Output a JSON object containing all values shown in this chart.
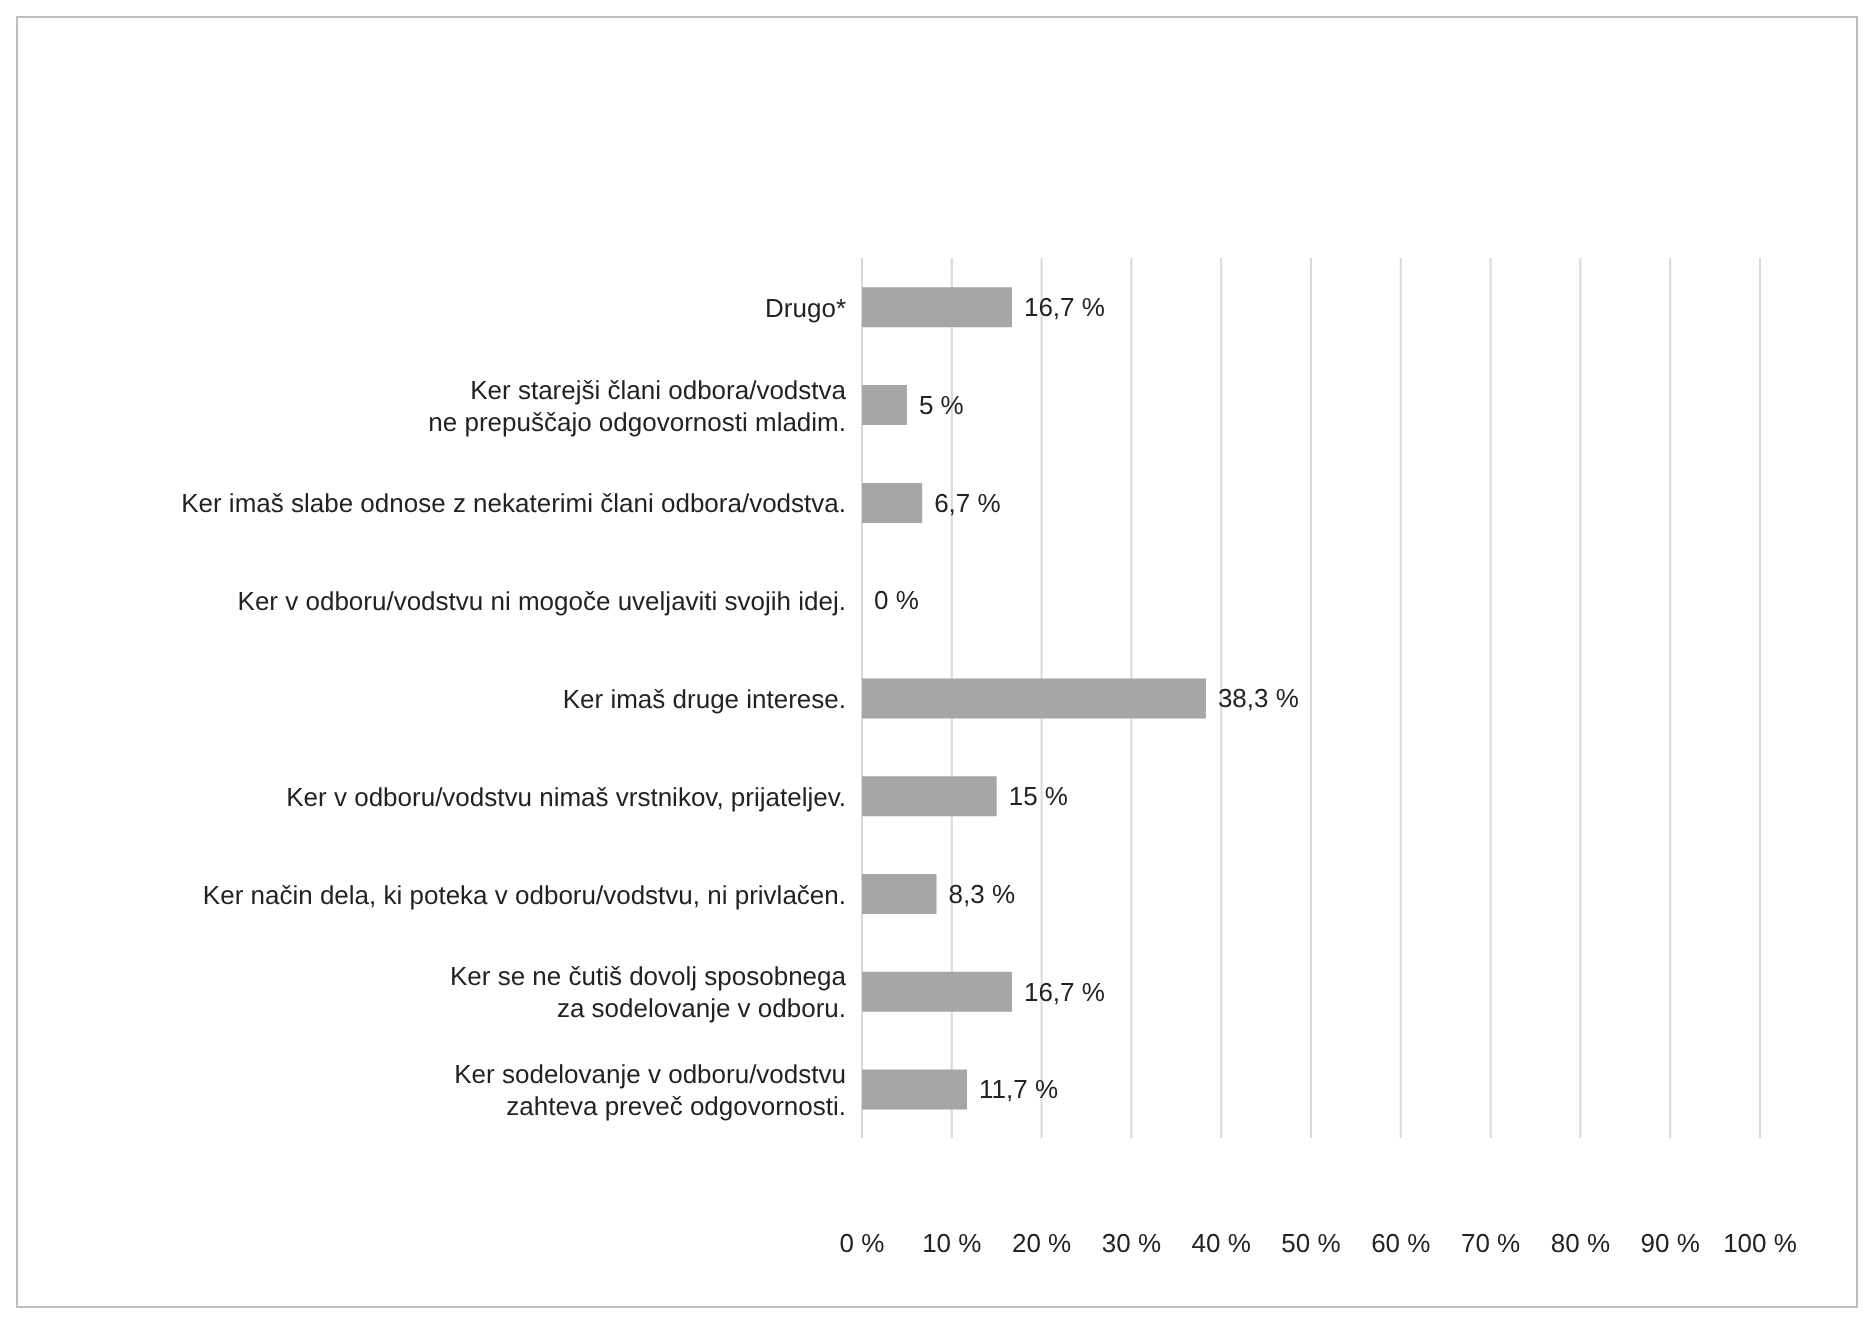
{
  "chart_data": {
    "type": "bar",
    "orientation": "horizontal",
    "categories": [
      "Drugo*",
      "Ker starejši člani odbora/vodstva\nne prepuščajo odgovornosti mladim.",
      "Ker imaš slabe odnose z nekaterimi člani odbora/vodstva.",
      "Ker v odboru/vodstvu ni mogoče uveljaviti svojih idej.",
      "Ker imaš druge interese.",
      "Ker v odboru/vodstvu nimaš vrstnikov, prijateljev.",
      "Ker način dela, ki poteka v odboru/vodstvu, ni privlačen.",
      "Ker se ne čutiš dovolj sposobnega\nza sodelovanje v odboru.",
      "Ker sodelovanje v odboru/vodstvu\nzahteva preveč odgovornosti."
    ],
    "values": [
      16.7,
      5,
      6.7,
      0,
      38.3,
      15,
      8.3,
      16.7,
      11.7
    ],
    "value_labels": [
      "16,7 %",
      "5 %",
      "6,7 %",
      "0 %",
      "38,3 %",
      "15 %",
      "8,3 %",
      "16,7 %",
      "11,7 %"
    ],
    "color": "#a6a6a6",
    "xlim": [
      0,
      100
    ],
    "xticks": [
      {
        "value": 0,
        "label": "0 %"
      },
      {
        "value": 10,
        "label": "10 %"
      },
      {
        "value": 20,
        "label": "20 %"
      },
      {
        "value": 30,
        "label": "30 %"
      },
      {
        "value": 40,
        "label": "40 %"
      },
      {
        "value": 50,
        "label": "50 %"
      },
      {
        "value": 60,
        "label": "60 %"
      },
      {
        "value": 70,
        "label": "70 %"
      },
      {
        "value": 80,
        "label": "80 %"
      },
      {
        "value": 90,
        "label": "90 %"
      },
      {
        "value": 100,
        "label": "100 %"
      }
    ],
    "grid": "x"
  }
}
